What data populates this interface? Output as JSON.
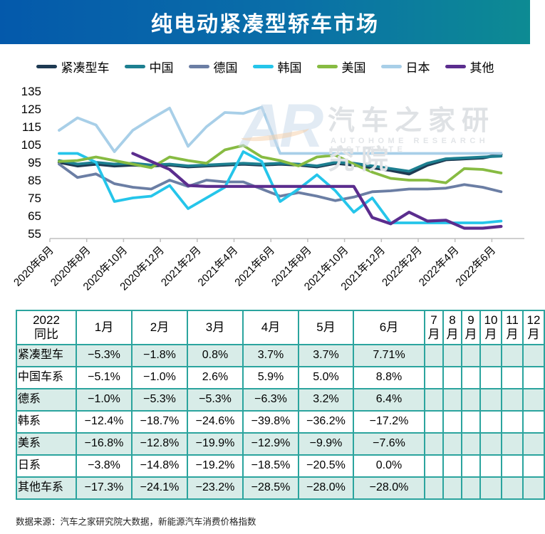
{
  "banner": {
    "title": "纯电动紧凑型轿车市场"
  },
  "colors": {
    "banner_left": "#0459ab",
    "banner_right": "#0d8b93",
    "table_border": "#2ba49e",
    "row_highlight": "#d8ece8"
  },
  "chart_data": {
    "type": "line",
    "title": "纯电动紧凑型轿车市场",
    "xlabel": "",
    "ylabel": "",
    "ylim": [
      55,
      135
    ],
    "yticks": [
      55,
      65,
      75,
      85,
      95,
      105,
      115,
      125,
      135
    ],
    "grid": false,
    "legend_position": "top",
    "x": [
      "2020年6月",
      "2020年7月",
      "2020年8月",
      "2020年9月",
      "2020年10月",
      "2020年11月",
      "2020年12月",
      "2021年1月",
      "2021年2月",
      "2021年3月",
      "2021年4月",
      "2021年5月",
      "2021年6月",
      "2021年7月",
      "2021年8月",
      "2021年9月",
      "2021年10月",
      "2021年11月",
      "2021年12月",
      "2022年1月",
      "2022年2月",
      "2022年3月",
      "2022年4月",
      "2022年5月",
      "2022年6月"
    ],
    "x_tick_labels": [
      "2020年6月",
      "2020年8月",
      "2020年10月",
      "2020年12月",
      "2021年2月",
      "2021年4月",
      "2021年6月",
      "2021年8月",
      "2021年10月",
      "2021年12月",
      "2022年2月",
      "2022年4月",
      "2022年6月"
    ],
    "series": [
      {
        "name": "紧凑型车",
        "color": "#1e3a52",
        "values": [
          95,
          93,
          94,
          93,
          93.5,
          93,
          93.5,
          92.5,
          93,
          93.5,
          94,
          93.5,
          94,
          93.5,
          92.5,
          94.5,
          93.5,
          92,
          90.5,
          88.5,
          93.5,
          96.5,
          97,
          97.5,
          99.5
        ]
      },
      {
        "name": "中国",
        "color": "#1d7f90",
        "values": [
          96,
          94,
          95,
          94,
          94.5,
          93.5,
          94,
          93,
          93.5,
          94,
          94.5,
          94,
          94.5,
          94,
          93,
          95,
          94.5,
          93,
          91.5,
          90,
          94.5,
          97,
          97.5,
          98,
          98.5
        ]
      },
      {
        "name": "德国",
        "color": "#6b7ea4",
        "values": [
          94,
          86.5,
          88.5,
          83,
          81,
          80,
          85,
          81.5,
          85,
          84,
          84,
          80,
          76,
          78,
          76,
          73.5,
          75.5,
          78.5,
          79,
          80,
          80,
          80.5,
          82.5,
          81,
          78.5
        ]
      },
      {
        "name": "韩国",
        "color": "#25c5ea",
        "values": [
          100,
          100,
          95,
          73,
          75,
          76,
          82,
          69,
          75,
          81,
          101,
          95.5,
          73,
          80,
          88,
          79,
          67,
          75,
          61,
          61,
          61,
          61,
          61,
          61,
          62
        ]
      },
      {
        "name": "美国",
        "color": "#87bb42",
        "values": [
          95.5,
          96,
          98,
          96,
          94,
          92,
          98,
          96,
          94.5,
          102,
          104.5,
          98,
          96,
          93,
          98,
          99,
          94,
          89.5,
          86,
          85,
          85,
          83.5,
          91.5,
          91,
          89
        ]
      },
      {
        "name": "日本",
        "color": "#a8cfe8",
        "values": [
          113,
          120,
          116,
          101,
          113,
          119.5,
          125.5,
          104,
          115,
          123,
          122.5,
          126,
          100,
          100,
          100,
          100,
          100,
          100,
          100,
          100,
          100,
          100,
          100,
          100,
          100
        ]
      },
      {
        "name": "其他",
        "color": "#5b2d8e",
        "values": [
          null,
          null,
          null,
          null,
          100,
          95.5,
          91,
          82,
          81.5,
          81.5,
          81.5,
          81.5,
          81.5,
          81.5,
          81.5,
          81.5,
          81.5,
          64,
          60.5,
          67,
          62,
          62.5,
          58,
          58,
          59
        ]
      }
    ]
  },
  "watermark": {
    "logo": "AR",
    "cn": "汽车之家研究院",
    "en": "AUTOHOME RESEARCH INSTITUTE"
  },
  "table": {
    "header": [
      "2022\n同比",
      "1月",
      "2月",
      "3月",
      "4月",
      "5月",
      "6月",
      "7月",
      "8月",
      "9月",
      "10月",
      "11月",
      "12月"
    ],
    "rows": [
      {
        "label": "紧凑型车",
        "highlight": true,
        "values": [
          "−5.3%",
          "−1.8%",
          "0.8%",
          "3.7%",
          "3.7%",
          "7.71%",
          "",
          "",
          "",
          "",
          "",
          ""
        ]
      },
      {
        "label": "中国车系",
        "highlight": false,
        "values": [
          "−5.1%",
          "−1.0%",
          "2.6%",
          "5.9%",
          "5.0%",
          "8.8%",
          "",
          "",
          "",
          "",
          "",
          ""
        ]
      },
      {
        "label": "德系",
        "highlight": true,
        "values": [
          "−1.0%",
          "−5.3%",
          "−5.3%",
          "−6.3%",
          "3.2%",
          "6.4%",
          "",
          "",
          "",
          "",
          "",
          ""
        ]
      },
      {
        "label": "韩系",
        "highlight": false,
        "values": [
          "−12.4%",
          "−18.7%",
          "−24.6%",
          "−39.8%",
          "−36.2%",
          "−17.2%",
          "",
          "",
          "",
          "",
          "",
          ""
        ]
      },
      {
        "label": "美系",
        "highlight": true,
        "values": [
          "−16.8%",
          "−12.8%",
          "−19.9%",
          "−12.9%",
          "−9.9%",
          "−7.6%",
          "",
          "",
          "",
          "",
          "",
          ""
        ]
      },
      {
        "label": "日系",
        "highlight": false,
        "values": [
          "−3.8%",
          "−14.8%",
          "−19.2%",
          "−18.5%",
          "−20.5%",
          "0.0%",
          "",
          "",
          "",
          "",
          "",
          ""
        ]
      },
      {
        "label": "其他车系",
        "highlight": true,
        "values": [
          "−17.3%",
          "−24.1%",
          "−23.2%",
          "−28.5%",
          "−28.0%",
          "−28.0%",
          "",
          "",
          "",
          "",
          "",
          ""
        ]
      }
    ]
  },
  "footer": {
    "source": "数据来源：汽车之家研究院大数据，新能源汽车消费价格指数"
  }
}
